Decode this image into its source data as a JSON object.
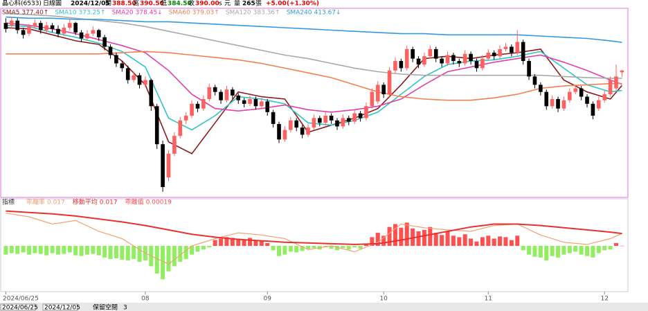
{
  "header": {
    "name": "晶心科(6533)",
    "period": "日線圖",
    "date": "2024/12/05",
    "open_label": "開",
    "open": "388.50",
    "high_label": "高",
    "high": "390.50",
    "low_label": "低",
    "low": "384.50",
    "close_label": "收",
    "close": "390.00",
    "unit1": "s",
    "unit2": "元",
    "volume_label": "量",
    "volume": "265",
    "volume_unit": "張",
    "change": "+5.00",
    "change_pct": "(+1.30%)"
  },
  "toolbar": {
    "from": "2024/06/25",
    "to": "2024/12/05",
    "reserve_label": "保留空間",
    "reserve": "3"
  },
  "chart_data": [
    {
      "type": "candlestick",
      "xlim": [
        -1,
        107.5
      ],
      "ylim": [
        285,
        440
      ],
      "xticks": [
        {
          "value": 0,
          "label": "2024/06/25"
        },
        {
          "value": 24,
          "label": "08"
        },
        {
          "value": 45,
          "label": "09"
        },
        {
          "value": 65,
          "label": "10"
        },
        {
          "value": 83,
          "label": "11"
        },
        {
          "value": 103,
          "label": "12"
        }
      ],
      "up_color": "#ff6060",
      "down_color": "#000000",
      "ohlc": [
        [
          430,
          434,
          422,
          425
        ],
        [
          428,
          435,
          425,
          432
        ],
        [
          432,
          434,
          421,
          424
        ],
        [
          424,
          426,
          417,
          420
        ],
        [
          421,
          429,
          419,
          427
        ],
        [
          427,
          433,
          425,
          430
        ],
        [
          430,
          432,
          421,
          424
        ],
        [
          424,
          431,
          422,
          428
        ],
        [
          428,
          430,
          422,
          425
        ],
        [
          425,
          428,
          418,
          421
        ],
        [
          421,
          429,
          419,
          426
        ],
        [
          426,
          433,
          424,
          430
        ],
        [
          430,
          431,
          420,
          422
        ],
        [
          422,
          424,
          414,
          417
        ],
        [
          417,
          424,
          415,
          421
        ],
        [
          421,
          427,
          419,
          424
        ],
        [
          424,
          425,
          415,
          418
        ],
        [
          418,
          420,
          407,
          410
        ],
        [
          410,
          412,
          400,
          403
        ],
        [
          403,
          405,
          393,
          396
        ],
        [
          396,
          398,
          389,
          392
        ],
        [
          392,
          394,
          379,
          382
        ],
        [
          382,
          389,
          380,
          386
        ],
        [
          386,
          388,
          375,
          378
        ],
        [
          378,
          385,
          376,
          382
        ],
        [
          382,
          383,
          356,
          360
        ],
        [
          360,
          362,
          324,
          328
        ],
        [
          328,
          331,
          288,
          292
        ],
        [
          300,
          323,
          297,
          320
        ],
        [
          320,
          338,
          318,
          335
        ],
        [
          335,
          351,
          333,
          348
        ],
        [
          348,
          355,
          345,
          352
        ],
        [
          352,
          365,
          350,
          362
        ],
        [
          362,
          364,
          355,
          358
        ],
        [
          358,
          369,
          356,
          366
        ],
        [
          366,
          379,
          364,
          376
        ],
        [
          376,
          378,
          369,
          372
        ],
        [
          372,
          374,
          362,
          365
        ],
        [
          365,
          377,
          363,
          374
        ],
        [
          374,
          376,
          366,
          369
        ],
        [
          369,
          371,
          362,
          365
        ],
        [
          365,
          367,
          359,
          362
        ],
        [
          362,
          369,
          360,
          366
        ],
        [
          366,
          368,
          357,
          360
        ],
        [
          360,
          367,
          358,
          364
        ],
        [
          364,
          366,
          352,
          355
        ],
        [
          355,
          357,
          342,
          345
        ],
        [
          345,
          347,
          329,
          332
        ],
        [
          332,
          343,
          330,
          340
        ],
        [
          340,
          351,
          338,
          348
        ],
        [
          348,
          350,
          339,
          342
        ],
        [
          342,
          344,
          333,
          336
        ],
        [
          336,
          345,
          334,
          342
        ],
        [
          342,
          353,
          340,
          350
        ],
        [
          350,
          352,
          343,
          346
        ],
        [
          346,
          355,
          344,
          352
        ],
        [
          352,
          354,
          345,
          348
        ],
        [
          348,
          350,
          340,
          343
        ],
        [
          343,
          353,
          341,
          350
        ],
        [
          350,
          352,
          344,
          347
        ],
        [
          347,
          357,
          345,
          354
        ],
        [
          354,
          356,
          347,
          350
        ],
        [
          350,
          363,
          348,
          360
        ],
        [
          360,
          375,
          358,
          372
        ],
        [
          364,
          381,
          362,
          378
        ],
        [
          378,
          380,
          367,
          370
        ],
        [
          370,
          393,
          368,
          390
        ],
        [
          390,
          401,
          388,
          398
        ],
        [
          398,
          400,
          389,
          392
        ],
        [
          392,
          411,
          390,
          408
        ],
        [
          408,
          410,
          397,
          400
        ],
        [
          400,
          402,
          392,
          395
        ],
        [
          395,
          405,
          393,
          402
        ],
        [
          402,
          411,
          400,
          408
        ],
        [
          408,
          410,
          397,
          400
        ],
        [
          400,
          402,
          393,
          396
        ],
        [
          396,
          406,
          394,
          403
        ],
        [
          403,
          405,
          395,
          398
        ],
        [
          398,
          400,
          393,
          396
        ],
        [
          396,
          407,
          394,
          404
        ],
        [
          404,
          406,
          395,
          398
        ],
        [
          398,
          400,
          389,
          392
        ],
        [
          392,
          403,
          390,
          400
        ],
        [
          400,
          408,
          398,
          405
        ],
        [
          405,
          407,
          399,
          402
        ],
        [
          402,
          411,
          400,
          408
        ],
        [
          408,
          413,
          406,
          410
        ],
        [
          410,
          412,
          402,
          405
        ],
        [
          405,
          424,
          403,
          414
        ],
        [
          414,
          416,
          395,
          398
        ],
        [
          398,
          400,
          382,
          385
        ],
        [
          385,
          387,
          375,
          378
        ],
        [
          378,
          380,
          369,
          372
        ],
        [
          372,
          374,
          357,
          360
        ],
        [
          360,
          369,
          358,
          366
        ],
        [
          366,
          368,
          355,
          358
        ],
        [
          358,
          368,
          356,
          365
        ],
        [
          365,
          375,
          363,
          372
        ],
        [
          372,
          378,
          370,
          375
        ],
        [
          375,
          377,
          365,
          368
        ],
        [
          368,
          370,
          359,
          362
        ],
        [
          362,
          364,
          349,
          352
        ],
        [
          358,
          368,
          356,
          365
        ],
        [
          365,
          373,
          363,
          370
        ],
        [
          370,
          385,
          368,
          382
        ],
        [
          375,
          395,
          373,
          385
        ],
        [
          388.5,
          390.5,
          384.5,
          390
        ]
      ],
      "ma_x": [
        0,
        4,
        8,
        12,
        16,
        20,
        24,
        28,
        32,
        36,
        40,
        44,
        48,
        52,
        56,
        60,
        64,
        68,
        72,
        76,
        80,
        84,
        88,
        92,
        96,
        100,
        104,
        106
      ],
      "series": [
        {
          "name": "SMA5",
          "label_value": "377.40↑",
          "color": "#8b1a1a",
          "values": [
            426,
            425,
            420,
            415,
            412,
            398,
            378,
            330,
            320,
            346,
            372,
            368,
            366,
            338,
            344,
            350,
            358,
            378,
            400,
            402,
            400,
            403,
            405,
            408,
            382,
            372,
            366,
            377.4
          ]
        },
        {
          "name": "SMA10",
          "label_value": "373.25↑",
          "color": "#2ec4c8",
          "values": [
            428,
            427,
            422,
            418,
            413,
            406,
            393,
            350,
            340,
            352,
            368,
            366,
            362,
            346,
            344,
            348,
            355,
            370,
            385,
            395,
            398,
            399,
            402,
            406,
            392,
            378,
            372,
            373.25
          ]
        },
        {
          "name": "SMA20",
          "label_value": "378.45↓",
          "color": "#e040a8",
          "values": [
            430,
            428,
            425,
            421,
            416,
            411,
            405,
            390,
            370,
            358,
            356,
            358,
            361,
            357,
            355,
            357,
            360,
            366,
            378,
            389,
            393,
            397,
            400,
            403,
            397,
            390,
            382,
            378.45
          ]
        },
        {
          "name": "SMA60",
          "label_value": "379.03↑",
          "color": "#f08050",
          "values": [
            404,
            404,
            404,
            404,
            404,
            405,
            406,
            405,
            403,
            401,
            399,
            396,
            392,
            388,
            384,
            378,
            372,
            368,
            366,
            365,
            365,
            367,
            370,
            375,
            377,
            378,
            379,
            379.03
          ]
        },
        {
          "name": "SMA120",
          "label_value": "383.36↑",
          "color": "#a8a8a8",
          "values": [
            438,
            437,
            436,
            434,
            432,
            430,
            427,
            423,
            419,
            415,
            411,
            407,
            403,
            400,
            396,
            392,
            389,
            387,
            386,
            386,
            386,
            386,
            386,
            386,
            385,
            384,
            383.5,
            383.36
          ]
        },
        {
          "name": "SMA240",
          "label_value": "413.67↓",
          "color": "#3399dd",
          "values": [
            435,
            434,
            434,
            433,
            433,
            432,
            431,
            431,
            430,
            429,
            428,
            427,
            426,
            425,
            424,
            423,
            422,
            421,
            421,
            420,
            420,
            420,
            420,
            419,
            418,
            417,
            415,
            413.67
          ]
        }
      ]
    },
    {
      "type": "bar",
      "title": "指標",
      "xlim": [
        -1,
        107.5
      ],
      "ylim": [
        -0.06,
        0.06
      ],
      "up_color": "#ff5050",
      "down_color": "#90ee60",
      "values": [
        -0.012,
        -0.01,
        -0.011,
        -0.009,
        -0.012,
        -0.01,
        -0.011,
        -0.013,
        -0.01,
        -0.012,
        -0.011,
        -0.009,
        -0.013,
        -0.014,
        -0.012,
        -0.011,
        -0.013,
        -0.016,
        -0.018,
        -0.017,
        -0.019,
        -0.02,
        -0.018,
        -0.022,
        -0.02,
        -0.028,
        -0.038,
        -0.046,
        -0.035,
        -0.028,
        -0.022,
        -0.018,
        -0.012,
        -0.008,
        -0.005,
        -0.002,
        0.008,
        0.01,
        0.012,
        0.011,
        0.01,
        0.009,
        0.011,
        0.008,
        0.007,
        0.004,
        -0.006,
        -0.014,
        -0.012,
        -0.008,
        -0.009,
        -0.007,
        -0.004,
        -0.003,
        -0.005,
        -0.002,
        -0.004,
        -0.006,
        -0.003,
        -0.005,
        -0.002,
        -0.004,
        0.003,
        0.012,
        0.018,
        0.014,
        0.026,
        0.03,
        0.025,
        0.032,
        0.024,
        0.02,
        0.022,
        0.026,
        0.018,
        0.015,
        0.02,
        0.014,
        0.012,
        0.016,
        0.01,
        0.006,
        0.012,
        0.014,
        0.01,
        0.013,
        0.012,
        0.008,
        0.014,
        -0.006,
        -0.012,
        -0.015,
        -0.016,
        -0.02,
        -0.014,
        -0.016,
        -0.012,
        -0.01,
        -0.008,
        -0.012,
        -0.014,
        -0.016,
        -0.01,
        -0.006,
        -0.005,
        0.004,
        0.00019
      ],
      "ma_x": [
        0,
        4,
        8,
        12,
        16,
        20,
        24,
        28,
        32,
        36,
        40,
        44,
        48,
        52,
        56,
        60,
        64,
        68,
        72,
        76,
        80,
        84,
        88,
        92,
        96,
        100,
        104,
        106
      ],
      "series": [
        {
          "name": "乖離率",
          "label_value": "0.017",
          "color": "#f4a070",
          "width": 1.2,
          "values": [
            0.045,
            0.04,
            0.03,
            0.035,
            0.02,
            0.01,
            -0.01,
            -0.025,
            0,
            0.01,
            0.018,
            0.015,
            0.01,
            -0.005,
            0,
            -0.008,
            0.005,
            0.03,
            0.025,
            0.022,
            0.02,
            0.028,
            0.03,
            0.015,
            0.005,
            0.002,
            0.01,
            0.017
          ]
        },
        {
          "name": "移動平均",
          "label_value": "0.017",
          "color": "#e83030",
          "width": 2,
          "values": [
            0.048,
            0.046,
            0.044,
            0.041,
            0.037,
            0.033,
            0.028,
            0.022,
            0.016,
            0.012,
            0.009,
            0.007,
            0.005,
            0.004,
            0.003,
            0.002,
            0.003,
            0.008,
            0.014,
            0.02,
            0.026,
            0.03,
            0.03,
            0.028,
            0.025,
            0.022,
            0.019,
            0.017
          ]
        }
      ],
      "hist_name": "乖離值",
      "hist_label": "0.00019"
    }
  ]
}
